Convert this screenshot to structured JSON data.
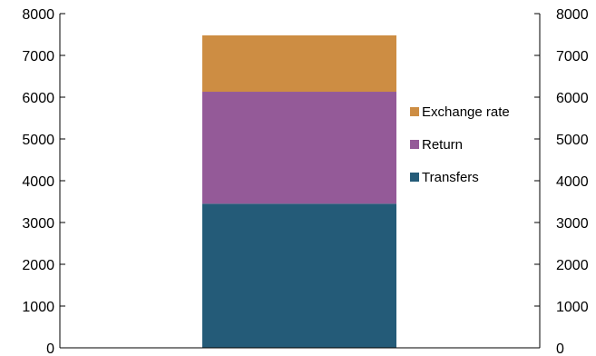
{
  "chart_data": {
    "type": "bar",
    "stacked": true,
    "categories": [
      ""
    ],
    "series": [
      {
        "name": "Transfers",
        "values": [
          3450
        ],
        "color": "#245b78"
      },
      {
        "name": "Return",
        "values": [
          2680
        ],
        "color": "#945a98"
      },
      {
        "name": "Exchange rate",
        "values": [
          1350
        ],
        "color": "#cd8d43"
      }
    ],
    "title": "",
    "xlabel": "",
    "ylabel": "",
    "ylim": [
      0,
      8000
    ],
    "yticks": [
      "0",
      "1000",
      "2000",
      "3000",
      "4000",
      "5000",
      "6000",
      "7000",
      "8000"
    ],
    "secondary_yticks": [
      "0",
      "1000",
      "2000",
      "3000",
      "4000",
      "5000",
      "6000",
      "7000",
      "8000"
    ],
    "legend_order": [
      "Exchange rate",
      "Return",
      "Transfers"
    ],
    "legend_position": "right",
    "grid": false
  }
}
